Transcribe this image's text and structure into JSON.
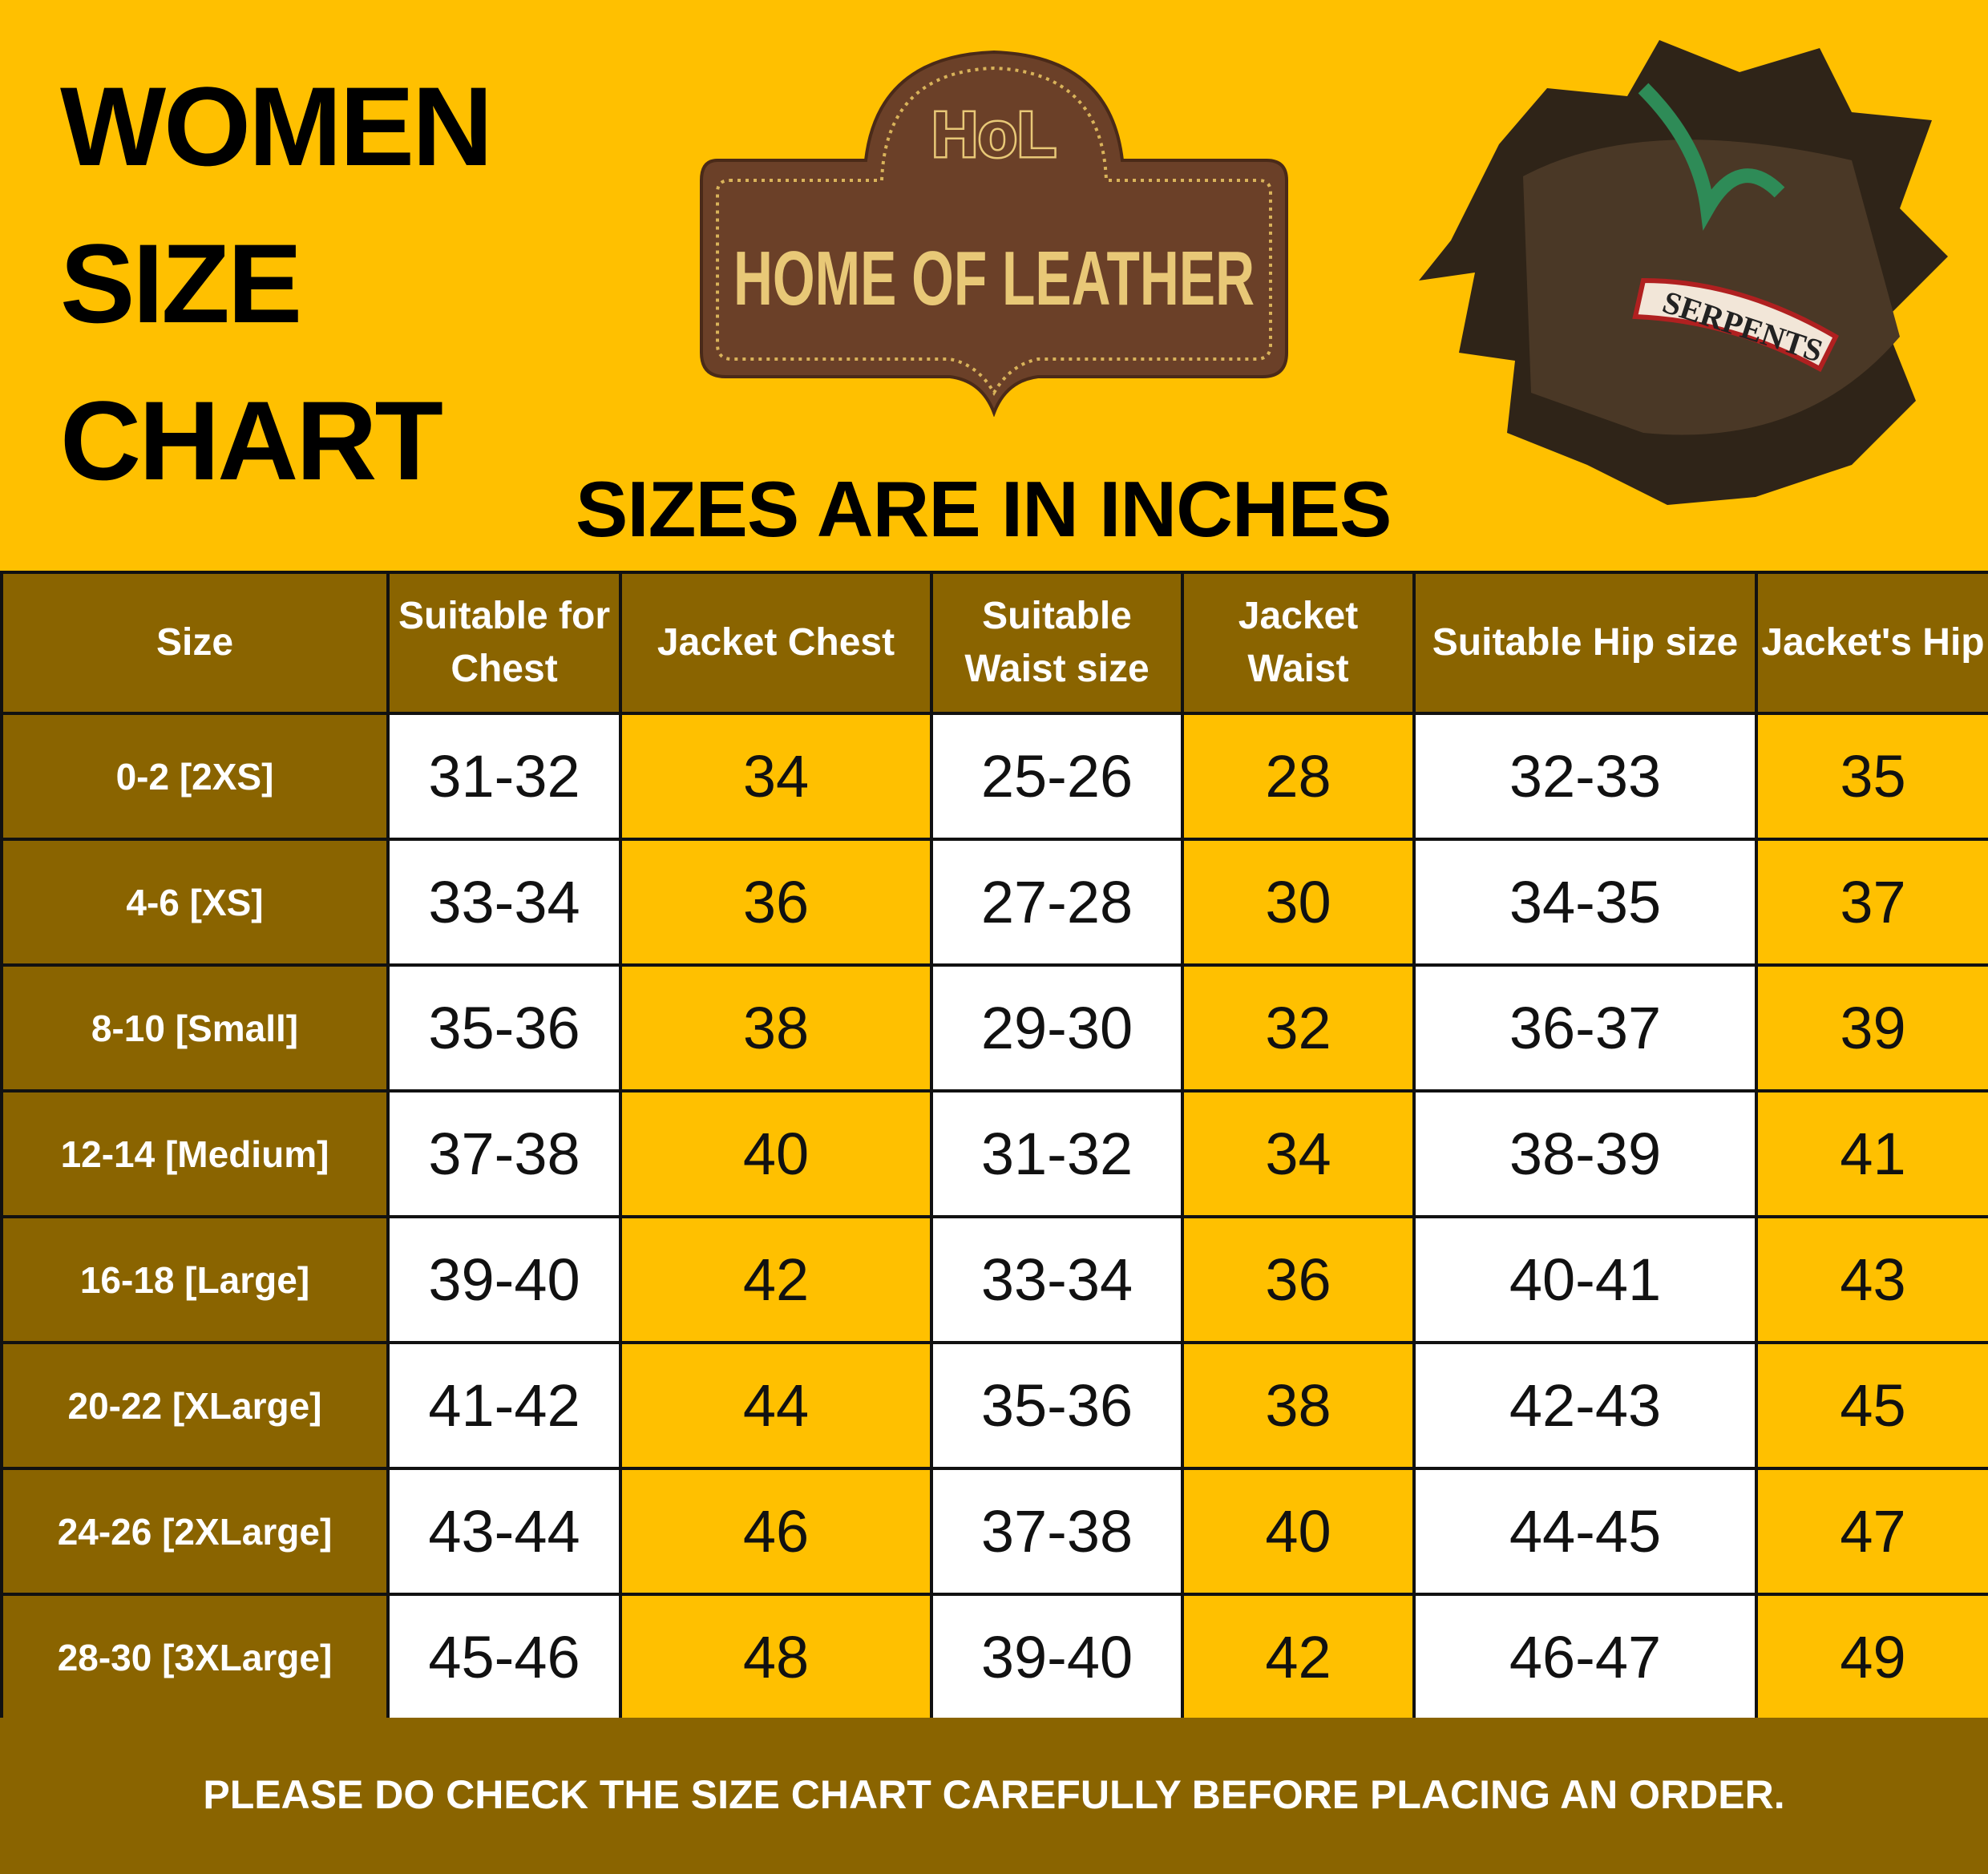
{
  "title_lines": [
    "WOMEN",
    "SIZE",
    "CHART"
  ],
  "subtitle": "SIZES ARE IN INCHES",
  "logo": {
    "monogram": "HoL",
    "text": "HOME OF LEATHER"
  },
  "jacket_image": {
    "patch_text": "SERPENTS"
  },
  "colors": {
    "yellow": "#FFC000",
    "brown": "#8A6400",
    "white": "#FFFFFF"
  },
  "table": {
    "headers": [
      "Size",
      "Suitable for Chest",
      "Jacket Chest",
      "Suitable Waist size",
      "Jacket Waist",
      "Suitable Hip size",
      "Jacket's Hip"
    ],
    "rows": [
      [
        "0-2 [2XS]",
        "31-32",
        "34",
        "25-26",
        "28",
        "32-33",
        "35"
      ],
      [
        "4-6 [XS]",
        "33-34",
        "36",
        "27-28",
        "30",
        "34-35",
        "37"
      ],
      [
        "8-10 [Small]",
        "35-36",
        "38",
        "29-30",
        "32",
        "36-37",
        "39"
      ],
      [
        "12-14 [Medium]",
        "37-38",
        "40",
        "31-32",
        "34",
        "38-39",
        "41"
      ],
      [
        "16-18 [Large]",
        "39-40",
        "42",
        "33-34",
        "36",
        "40-41",
        "43"
      ],
      [
        "20-22 [XLarge]",
        "41-42",
        "44",
        "35-36",
        "38",
        "42-43",
        "45"
      ],
      [
        "24-26 [2XLarge]",
        "43-44",
        "46",
        "37-38",
        "40",
        "44-45",
        "47"
      ],
      [
        "28-30 [3XLarge]",
        "45-46",
        "48",
        "39-40",
        "42",
        "46-47",
        "49"
      ]
    ]
  },
  "footer": "PLEASE DO CHECK THE SIZE CHART CAREFULLY BEFORE PLACING AN ORDER."
}
